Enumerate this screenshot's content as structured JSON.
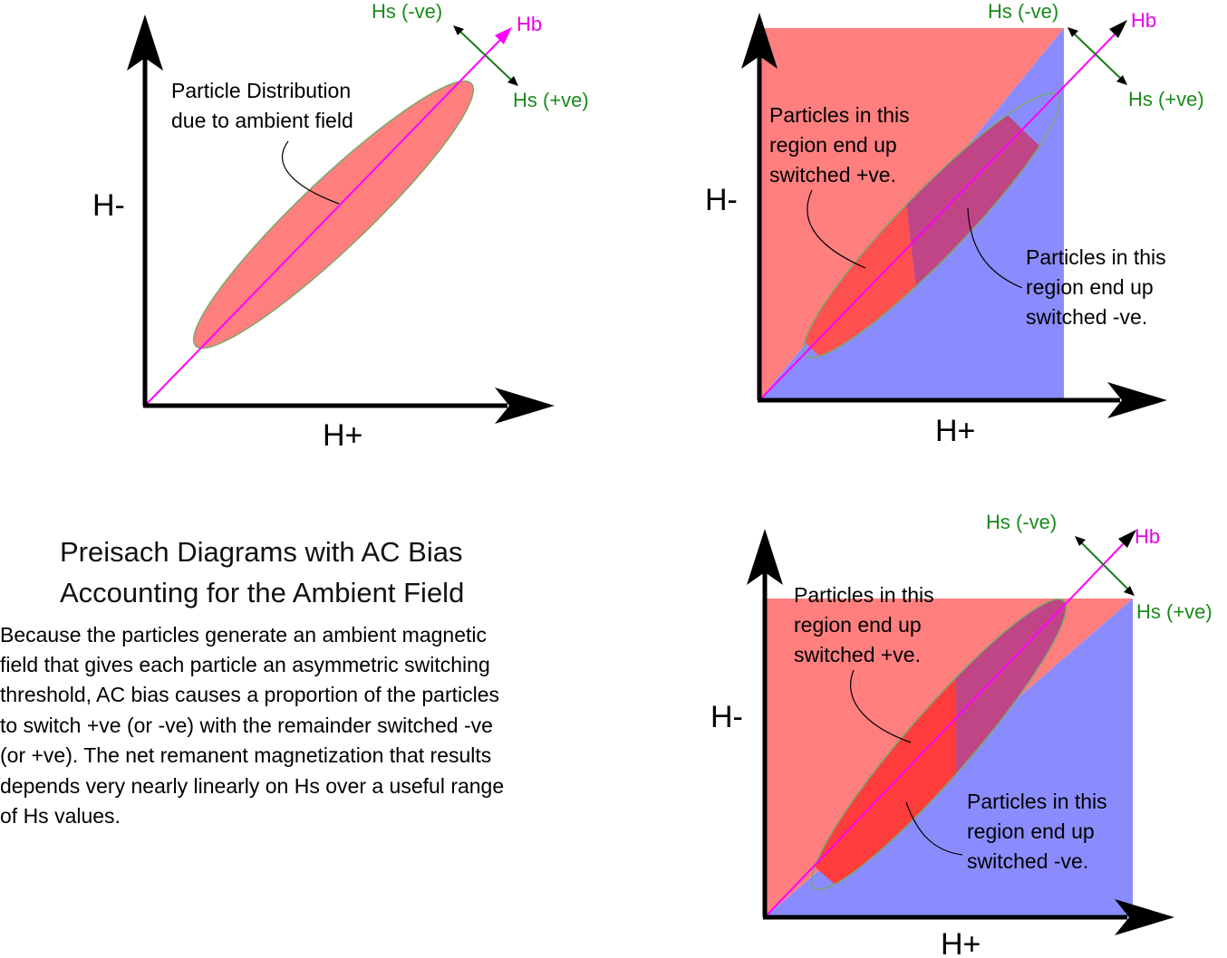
{
  "colors": {
    "positive_region": "#ff7f7f",
    "negative_region": "#8a8cfe",
    "particle_fill": "#ff7f7f",
    "particle_fill_dark": "#c04587",
    "particle_fill_bright": "#ff4040",
    "particle_stroke": "#7aa86a",
    "hb_line": "#ff00ff",
    "hs_arrow": "#1a7a1a",
    "axis": "#000000"
  },
  "diagram1": {
    "x_axis_label": "H+",
    "y_axis_label": "H-",
    "hb_label": "Hb",
    "hs_neg_label": "Hs (-ve)",
    "hs_pos_label": "Hs (+ve)",
    "note_lines": [
      "Particle Distribution",
      "due to ambient field"
    ]
  },
  "diagram2": {
    "x_axis_label": "H+",
    "y_axis_label": "H-",
    "hb_label": "Hb",
    "hs_neg_label": "Hs (-ve)",
    "hs_pos_label": "Hs (+ve)",
    "positive_note_lines": [
      "Particles in this",
      "region end up",
      "switched +ve."
    ],
    "negative_note_lines": [
      "Particles in this",
      "region end up",
      "switched -ve."
    ]
  },
  "diagram3": {
    "x_axis_label": "H+",
    "y_axis_label": "H-",
    "hb_label": "Hb",
    "hs_neg_label": "Hs (-ve)",
    "hs_pos_label": "Hs (+ve)",
    "positive_note_lines": [
      "Particles in this",
      "region end up",
      "switched +ve."
    ],
    "negative_note_lines": [
      "Particles in this",
      "region end up",
      "switched -ve."
    ]
  },
  "title_lines": [
    "Preisach Diagrams with AC Bias",
    "Accounting for the Ambient Field"
  ],
  "description_lines": [
    "Because the particles generate an ambient magnetic",
    "field that gives each particle an asymmetric switching",
    "threshold, AC bias causes a proportion of the particles",
    "to switch +ve (or -ve) with the remainder switched -ve",
    "(or +ve). The net remanent magnetization that results",
    "depends very nearly linearly on Hs over a useful range",
    "of Hs values."
  ]
}
